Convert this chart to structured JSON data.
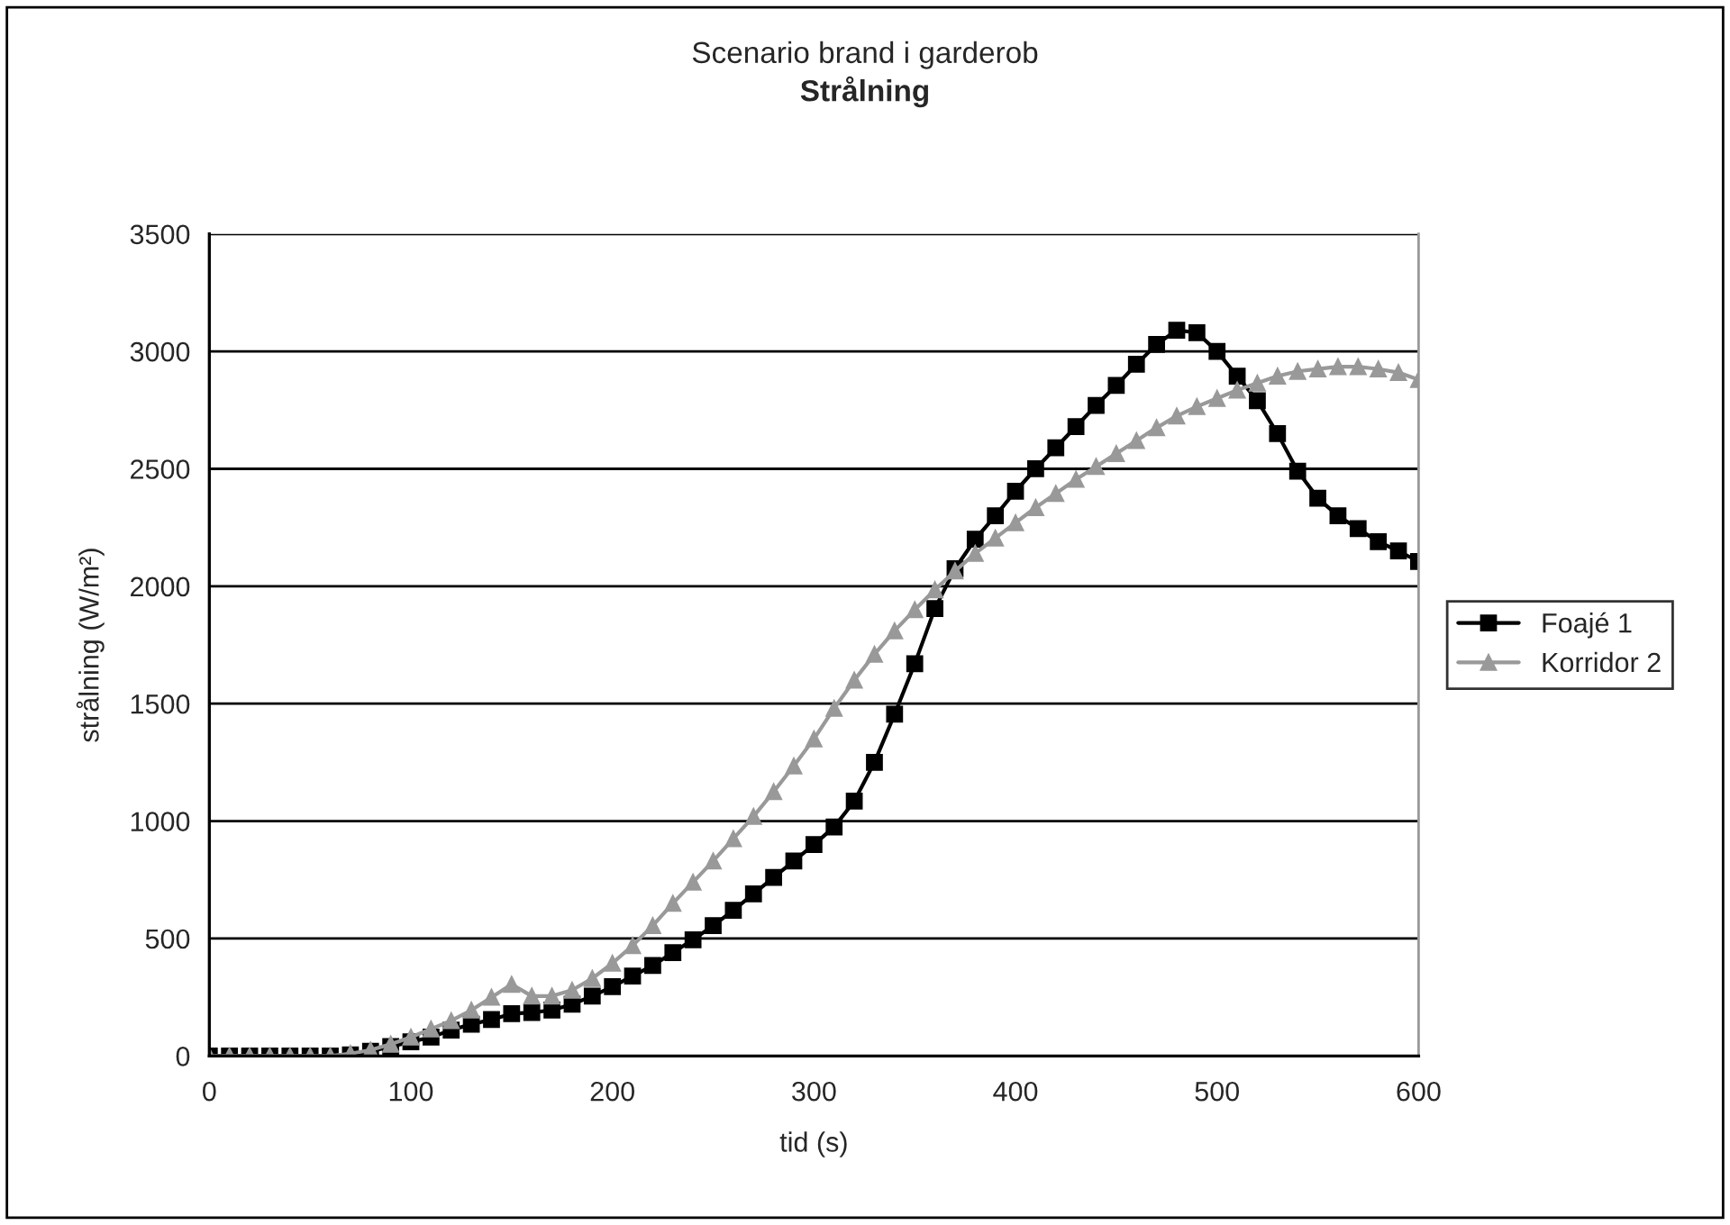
{
  "chart_data": {
    "type": "line",
    "title": "Scenario brand i garderob",
    "subtitle": "Strålning",
    "xlabel": "tid (s)",
    "ylabel": "strålning (W/m²)",
    "x": [
      0,
      10,
      20,
      30,
      40,
      50,
      60,
      70,
      80,
      90,
      100,
      110,
      120,
      130,
      140,
      150,
      160,
      170,
      180,
      190,
      200,
      210,
      220,
      230,
      240,
      250,
      260,
      270,
      280,
      290,
      300,
      310,
      320,
      330,
      340,
      350,
      360,
      370,
      380,
      390,
      400,
      410,
      420,
      430,
      440,
      450,
      460,
      470,
      480,
      490,
      500,
      510,
      520,
      530,
      540,
      550,
      560,
      570,
      580,
      590,
      600
    ],
    "series": [
      {
        "name": "Foajé 1",
        "color": "#000000",
        "marker": "square",
        "values": [
          0,
          0,
          0,
          0,
          0,
          0,
          0,
          5,
          20,
          40,
          60,
          80,
          110,
          135,
          155,
          180,
          185,
          195,
          220,
          255,
          295,
          340,
          385,
          440,
          495,
          555,
          620,
          690,
          760,
          830,
          900,
          975,
          1085,
          1250,
          1455,
          1670,
          1905,
          2075,
          2200,
          2300,
          2405,
          2500,
          2590,
          2680,
          2770,
          2855,
          2945,
          3030,
          3090,
          3080,
          3000,
          2895,
          2790,
          2650,
          2490,
          2375,
          2300,
          2245,
          2190,
          2150,
          2105
        ]
      },
      {
        "name": "Korridor 2",
        "color": "#999999",
        "marker": "triangle",
        "values": [
          0,
          0,
          0,
          0,
          0,
          0,
          0,
          10,
          25,
          50,
          80,
          115,
          150,
          195,
          250,
          305,
          255,
          255,
          280,
          330,
          395,
          470,
          555,
          650,
          740,
          830,
          925,
          1020,
          1125,
          1235,
          1350,
          1480,
          1600,
          1710,
          1810,
          1900,
          1985,
          2065,
          2140,
          2205,
          2270,
          2335,
          2395,
          2455,
          2510,
          2565,
          2620,
          2675,
          2725,
          2765,
          2800,
          2835,
          2865,
          2895,
          2915,
          2925,
          2935,
          2935,
          2925,
          2910,
          2880
        ]
      }
    ],
    "xlim": [
      0,
      600
    ],
    "xticks": [
      0,
      100,
      200,
      300,
      400,
      500,
      600
    ],
    "ylim": [
      0,
      3500
    ],
    "yticks": [
      0,
      500,
      1000,
      1500,
      2000,
      2500,
      3000,
      3500
    ],
    "grid": "y",
    "legend": "right",
    "line_style": "solid"
  }
}
